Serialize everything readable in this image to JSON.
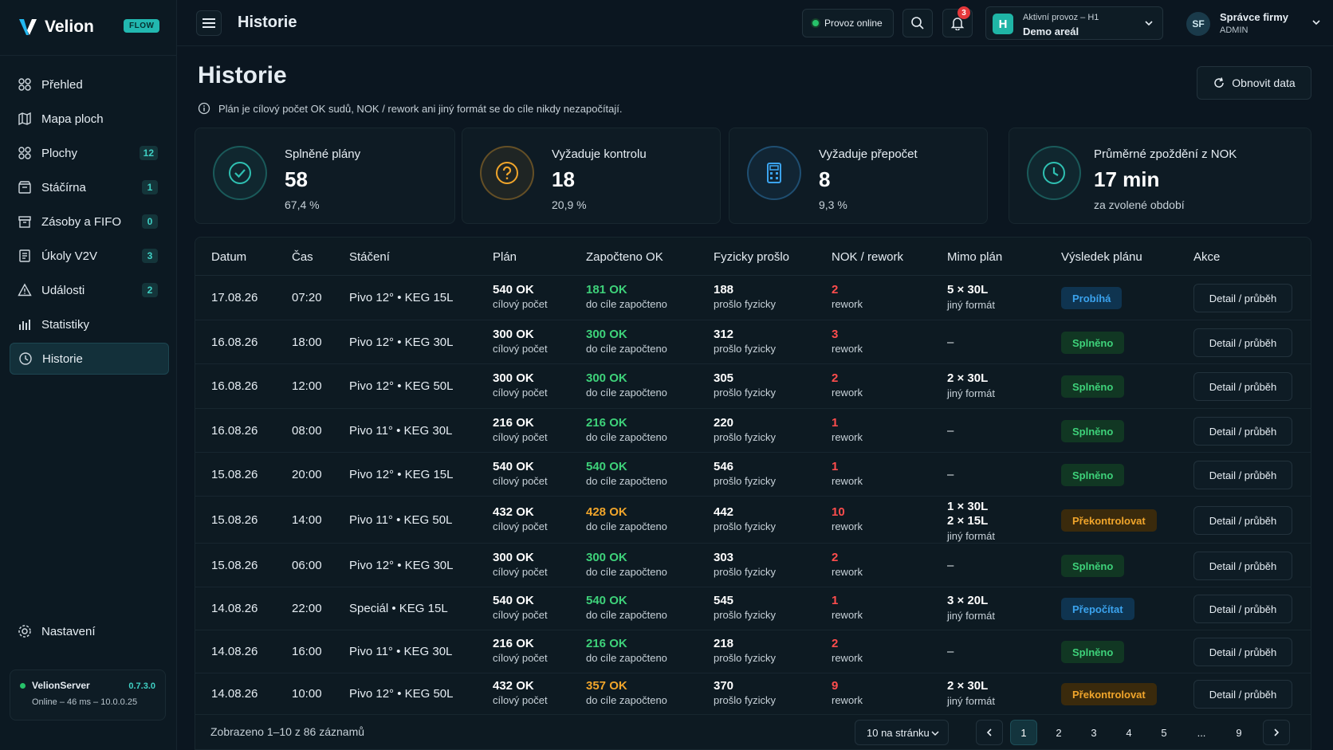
{
  "brand": {
    "name": "Velion",
    "badge": "FLOW"
  },
  "sidebar": {
    "items": [
      {
        "label": "Přehled",
        "icon": "dashboard-icon",
        "badge": ""
      },
      {
        "label": "Mapa ploch",
        "icon": "map-icon",
        "badge": ""
      },
      {
        "label": "Plochy",
        "icon": "grid-icon",
        "badge": "12"
      },
      {
        "label": "Stáčírna",
        "icon": "box-icon",
        "badge": "1"
      },
      {
        "label": "Zásoby a FIFO",
        "icon": "archive-icon",
        "badge": "0"
      },
      {
        "label": "Úkoly V2V",
        "icon": "task-icon",
        "badge": "3"
      },
      {
        "label": "Události",
        "icon": "warning-icon",
        "badge": "2"
      },
      {
        "label": "Statistiky",
        "icon": "chart-icon",
        "badge": ""
      },
      {
        "label": "Historie",
        "icon": "history-icon",
        "badge": ""
      }
    ],
    "settings_label": "Nastavení",
    "server": {
      "name": "VelionServer",
      "version": "0.7.3.0",
      "status": "Online – 46 ms – 10.0.0.25"
    }
  },
  "topbar": {
    "title": "Historie",
    "online_label": "Provoz online",
    "notifications_count": "3",
    "site": {
      "label": "Aktivní provoz – H1",
      "value": "Demo areál",
      "avatar": "H"
    },
    "user": {
      "initials": "SF",
      "name": "Správce firmy",
      "role": "ADMIN"
    }
  },
  "page": {
    "title": "Historie",
    "note": "Plán je cílový počet OK sudů, NOK / rework ani jiný formát se do cíle nikdy nezapočítají.",
    "refresh_label": "Obnovit data"
  },
  "cards": [
    {
      "label": "Splněné plány",
      "value": "58",
      "sub": "67,4 %",
      "icon": "check-circle-icon",
      "color": "#2fc0b2"
    },
    {
      "label": "Vyžaduje kontrolu",
      "value": "18",
      "sub": "20,9 %",
      "icon": "question-circle-icon",
      "color": "#f0a52b"
    },
    {
      "label": "Vyžaduje přepočet",
      "value": "8",
      "sub": "9,3 %",
      "icon": "calculator-icon",
      "color": "#3ba3ee"
    },
    {
      "label": "Průměrné zpoždění z NOK",
      "value": "17 min",
      "sub": "za zvolené období",
      "icon": "clock-icon",
      "color": "#2fc0b2"
    }
  ],
  "table": {
    "columns": [
      "Datum",
      "Čas",
      "Stáčení",
      "Plán",
      "Započteno OK",
      "Fyzicky prošlo",
      "NOK / rework",
      "Mimo plán",
      "Výsledek plánu",
      "Akce"
    ],
    "plan_sub": "cílový počet",
    "ok_sub": "do cíle započteno",
    "phys_sub": "prošlo fyzicky",
    "nok_sub": "rework",
    "detail_label": "Detail / průběh",
    "rows": [
      {
        "date": "17.08.26",
        "time": "07:20",
        "filling": "Pivo 12° • KEG 15L",
        "plan": "540 OK",
        "ok": "181 OK",
        "ok_color": "green",
        "phys": "188",
        "nok": "2",
        "off_plan": [
          "5 × 30L"
        ],
        "off_sub": "jiný formát",
        "status": "Probíhá",
        "status_kind": "probiha"
      },
      {
        "date": "16.08.26",
        "time": "18:00",
        "filling": "Pivo 12° • KEG 30L",
        "plan": "300 OK",
        "ok": "300 OK",
        "ok_color": "green",
        "phys": "312",
        "nok": "3",
        "off_plan": [
          "–"
        ],
        "off_sub": "",
        "status": "Splněno",
        "status_kind": "splneno"
      },
      {
        "date": "16.08.26",
        "time": "12:00",
        "filling": "Pivo 12° • KEG 50L",
        "plan": "300 OK",
        "ok": "300 OK",
        "ok_color": "green",
        "phys": "305",
        "nok": "2",
        "off_plan": [
          "2 × 30L"
        ],
        "off_sub": "jiný formát",
        "status": "Splněno",
        "status_kind": "splneno"
      },
      {
        "date": "16.08.26",
        "time": "08:00",
        "filling": "Pivo 11° • KEG 30L",
        "plan": "216 OK",
        "ok": "216 OK",
        "ok_color": "green",
        "phys": "220",
        "nok": "1",
        "off_plan": [
          "–"
        ],
        "off_sub": "",
        "status": "Splněno",
        "status_kind": "splneno"
      },
      {
        "date": "15.08.26",
        "time": "20:00",
        "filling": "Pivo 12° • KEG 15L",
        "plan": "540 OK",
        "ok": "540 OK",
        "ok_color": "green",
        "phys": "546",
        "nok": "1",
        "off_plan": [
          "–"
        ],
        "off_sub": "",
        "status": "Splněno",
        "status_kind": "splneno"
      },
      {
        "date": "15.08.26",
        "time": "14:00",
        "filling": "Pivo 11° • KEG 50L",
        "plan": "432 OK",
        "ok": "428 OK",
        "ok_color": "orange",
        "phys": "442",
        "nok": "10",
        "off_plan": [
          "1 × 30L",
          "2 × 15L"
        ],
        "off_sub": "jiný formát",
        "status": "Překontrolovat",
        "status_kind": "prekontrolovat"
      },
      {
        "date": "15.08.26",
        "time": "06:00",
        "filling": "Pivo 12° • KEG 30L",
        "plan": "300 OK",
        "ok": "300 OK",
        "ok_color": "green",
        "phys": "303",
        "nok": "2",
        "off_plan": [
          "–"
        ],
        "off_sub": "",
        "status": "Splněno",
        "status_kind": "splneno"
      },
      {
        "date": "14.08.26",
        "time": "22:00",
        "filling": "Speciál • KEG 15L",
        "plan": "540 OK",
        "ok": "540 OK",
        "ok_color": "green",
        "phys": "545",
        "nok": "1",
        "off_plan": [
          "3 × 20L"
        ],
        "off_sub": "jiný formát",
        "status": "Přepočítat",
        "status_kind": "prepocitat"
      },
      {
        "date": "14.08.26",
        "time": "16:00",
        "filling": "Pivo 11° • KEG 30L",
        "plan": "216 OK",
        "ok": "216 OK",
        "ok_color": "green",
        "phys": "218",
        "nok": "2",
        "off_plan": [
          "–"
        ],
        "off_sub": "",
        "status": "Splněno",
        "status_kind": "splneno"
      },
      {
        "date": "14.08.26",
        "time": "10:00",
        "filling": "Pivo 12° • KEG 50L",
        "plan": "432 OK",
        "ok": "357 OK",
        "ok_color": "orange",
        "phys": "370",
        "nok": "9",
        "off_plan": [
          "2 × 30L"
        ],
        "off_sub": "jiný formát",
        "status": "Překontrolovat",
        "status_kind": "prekontrolovat"
      }
    ]
  },
  "footer": {
    "summary": "Zobrazeno 1–10 z 86 záznamů",
    "per_page": "10 na stránku",
    "pages": [
      "1",
      "2",
      "3",
      "4",
      "5",
      "...",
      "9"
    ],
    "current_page": "1"
  }
}
